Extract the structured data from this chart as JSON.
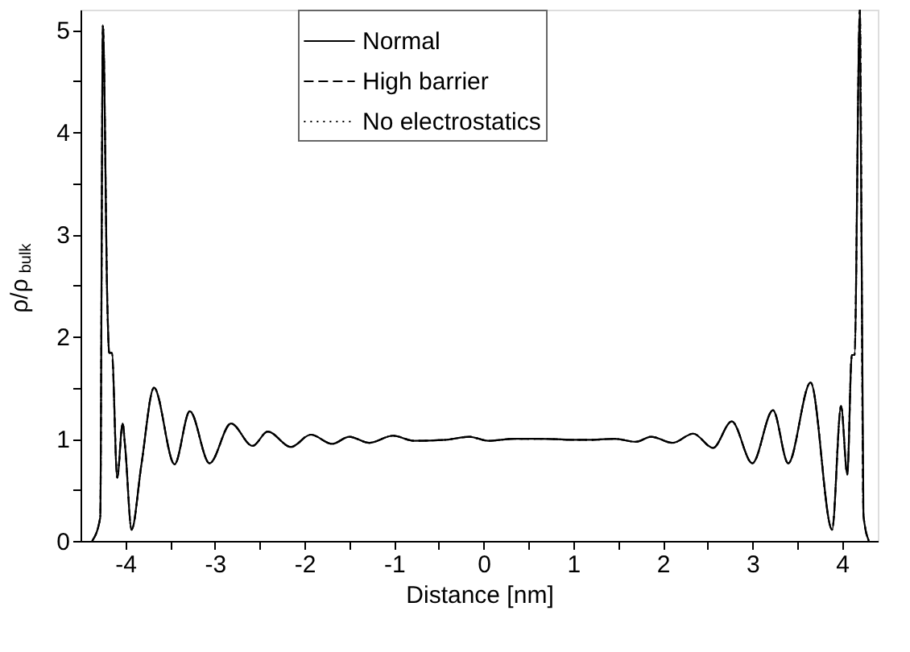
{
  "chart_data": {
    "type": "line",
    "xlabel": "Distance [nm]",
    "ylabel": "ρ/ρ$_{bulk}$",
    "x": [
      -4.37,
      -4.28,
      -4.25,
      -4.2,
      -4.18,
      -4.15,
      -4.09,
      -4.03,
      -4.0,
      -3.93,
      -3.82,
      -3.68,
      -3.45,
      -3.28,
      -3.06,
      -2.82,
      -2.58,
      -2.41,
      -2.15,
      -1.93,
      -1.69,
      -1.5,
      -1.28,
      -1.01,
      -0.78,
      -0.42,
      -0.16,
      0.05,
      0.34,
      0.64,
      0.99,
      1.22,
      1.46,
      1.7,
      1.87,
      2.11,
      2.34,
      2.56,
      2.77,
      3.0,
      3.23,
      3.4,
      3.65,
      3.89,
      3.99,
      4.06,
      4.11,
      4.14,
      4.2,
      4.24,
      4.3
    ],
    "series": [
      {
        "name": "Normal",
        "color": "#000000",
        "line_style": "solid",
        "values": [
          0,
          0.23,
          5.05,
          2.3,
          1.84,
          1.84,
          0.62,
          1.15,
          0.9,
          0.11,
          0.75,
          1.5,
          0.75,
          1.27,
          0.76,
          1.15,
          0.93,
          1.07,
          0.92,
          1.04,
          0.95,
          1.02,
          0.96,
          1.03,
          0.98,
          0.99,
          1.02,
          0.98,
          1.0,
          1.0,
          0.99,
          0.99,
          1.0,
          0.97,
          1.02,
          0.96,
          1.05,
          0.91,
          1.17,
          0.76,
          1.28,
          0.76,
          1.55,
          0.11,
          1.32,
          0.65,
          1.82,
          1.82,
          5.2,
          0.25,
          0
        ]
      },
      {
        "name": "High barrier",
        "color": "#000000",
        "line_style": "dashed",
        "values": [
          0,
          0.23,
          5.05,
          2.3,
          1.84,
          1.84,
          0.62,
          1.15,
          0.9,
          0.11,
          0.75,
          1.5,
          0.75,
          1.27,
          0.76,
          1.15,
          0.93,
          1.07,
          0.92,
          1.04,
          0.95,
          1.02,
          0.96,
          1.03,
          0.98,
          0.99,
          1.02,
          0.98,
          1.0,
          1.0,
          0.99,
          0.99,
          1.0,
          0.97,
          1.02,
          0.96,
          1.05,
          0.91,
          1.17,
          0.76,
          1.28,
          0.76,
          1.55,
          0.11,
          1.32,
          0.65,
          1.82,
          1.82,
          5.2,
          0.25,
          0
        ]
      },
      {
        "name": "No electrostatics",
        "color": "#000000",
        "line_style": "dotted",
        "values": [
          0,
          0.23,
          5.05,
          2.3,
          1.84,
          1.84,
          0.62,
          1.15,
          0.9,
          0.11,
          0.75,
          1.5,
          0.75,
          1.27,
          0.76,
          1.15,
          0.93,
          1.07,
          0.92,
          1.04,
          0.95,
          1.02,
          0.96,
          1.03,
          0.98,
          0.99,
          1.02,
          0.98,
          1.0,
          1.0,
          0.99,
          0.99,
          1.0,
          0.97,
          1.02,
          0.96,
          1.05,
          0.91,
          1.17,
          0.76,
          1.28,
          0.76,
          1.55,
          0.11,
          1.32,
          0.65,
          1.82,
          1.82,
          5.2,
          0.25,
          0
        ]
      }
    ],
    "xlim": [
      -4.5,
      4.4
    ],
    "xticks": [
      -4,
      {
        "value": -3.5,
        "label": null
      },
      -3,
      {
        "value": -2.5,
        "label": null
      },
      -2,
      {
        "value": -1.5,
        "label": null
      },
      -1,
      {
        "value": -0.5,
        "label": null
      },
      0,
      {
        "value": 0.5,
        "label": null
      },
      1,
      {
        "value": 1.5,
        "label": null
      },
      2,
      {
        "value": 2.5,
        "label": null
      },
      3,
      {
        "value": 3.5,
        "label": null
      },
      4
    ],
    "ylim": [
      0,
      5.2
    ],
    "yticks": [
      0,
      {
        "value": 0.5,
        "label": null
      },
      1,
      {
        "value": 1.5,
        "label": null
      },
      2,
      {
        "value": 2.5,
        "label": null
      },
      3,
      {
        "value": 3.5,
        "label": null
      },
      4,
      {
        "value": 4.5,
        "label": null
      },
      5
    ],
    "grid": false,
    "legend": "top"
  }
}
